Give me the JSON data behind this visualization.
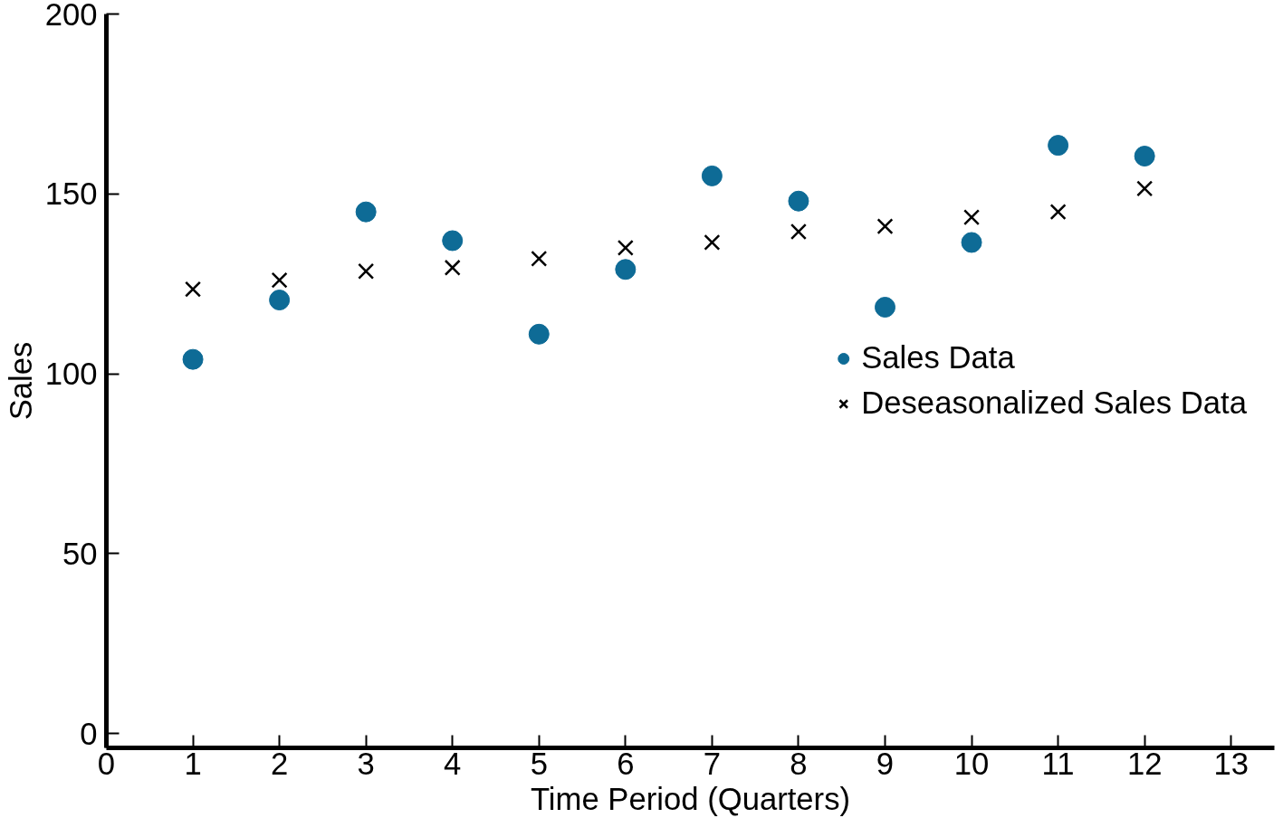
{
  "chart_data": {
    "type": "scatter",
    "xlabel": "Time Period (Quarters)",
    "ylabel": "Sales",
    "x": [
      1,
      2,
      3,
      4,
      5,
      6,
      7,
      8,
      9,
      10,
      11,
      12
    ],
    "series": [
      {
        "name": "Sales Data",
        "color": "#0e6b96",
        "marker": "circle",
        "values": [
          104,
          120.5,
          145,
          137,
          111,
          129,
          155,
          148,
          118.5,
          136.5,
          163.5,
          160.5
        ]
      },
      {
        "name": "Deseasonalized Sales Data",
        "color": "#000000",
        "marker": "cross",
        "values": [
          123.5,
          126,
          128.5,
          129.5,
          132,
          135,
          136.5,
          139.5,
          141,
          143.5,
          145,
          151.5
        ]
      }
    ],
    "xlim": [
      0,
      13.5
    ],
    "ylim": [
      -4,
      200
    ],
    "xticks": [
      0,
      1,
      2,
      3,
      4,
      5,
      6,
      7,
      8,
      9,
      10,
      11,
      12,
      13
    ],
    "yticks": [
      0,
      50,
      100,
      150,
      200
    ],
    "grid": false,
    "legend": "right"
  }
}
